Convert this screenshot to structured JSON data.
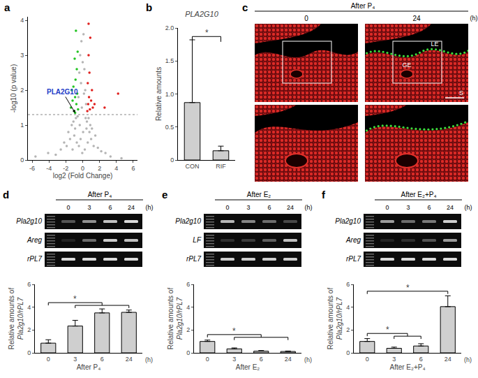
{
  "chart_data": [
    {
      "panel": "a",
      "type": "scatter",
      "xlabel": "log2 (Fold Change)",
      "ylabel": "-log10 (p value)",
      "xlim": [
        -6.5,
        6.5
      ],
      "xticks": [
        -6,
        -4,
        -2,
        0,
        2,
        4,
        6
      ],
      "ylim": [
        0,
        4.1
      ],
      "yticks": [
        0,
        1,
        2,
        3,
        4
      ],
      "grid": false,
      "threshold": 1.3,
      "series": [
        {
          "color": "#b4b4b4",
          "x": [
            -5.6,
            -4.1,
            -3.2,
            -2.6,
            -2.2,
            -1.9,
            -1.7,
            -1.5,
            -1.3,
            -1.2,
            -1.1,
            -1.0,
            -0.9,
            -0.8,
            -0.7,
            -0.6,
            -0.5,
            -0.45,
            -0.4,
            -0.35,
            -0.3,
            -0.25,
            -0.2,
            -0.15,
            -0.1,
            -0.05,
            0,
            0.05,
            0.1,
            0.15,
            0.2,
            0.25,
            0.3,
            0.35,
            0.4,
            0.45,
            0.5,
            0.6,
            0.7,
            0.8,
            0.9,
            1.0,
            1.1,
            1.3,
            1.5,
            1.8,
            2.2,
            2.7,
            3.3,
            4.6
          ],
          "y": [
            0.1,
            0.2,
            0.15,
            0.3,
            0.5,
            0.4,
            0.8,
            0.6,
            1.0,
            0.3,
            1.1,
            0.7,
            0.9,
            1.2,
            0.5,
            1.25,
            1.8,
            0.4,
            2.5,
            1.0,
            3.0,
            0.6,
            2.2,
            3.4,
            1.5,
            0.2,
            2.8,
            0.8,
            3.6,
            1.9,
            2.6,
            0.3,
            2.0,
            1.2,
            1.6,
            0.9,
            1.1,
            0.5,
            1.2,
            0.8,
            1.0,
            0.6,
            0.9,
            0.4,
            0.7,
            0.35,
            0.25,
            0.2,
            0.1,
            0.05
          ]
        },
        {
          "color": "#22c422",
          "x": [
            -1.4,
            -1.2,
            -1.1,
            -1.0,
            -0.95,
            -0.9,
            -0.85,
            -0.8,
            -0.75,
            -0.7,
            -0.65,
            -0.6,
            -0.55,
            -1.3,
            -0.9
          ],
          "y": [
            1.5,
            1.7,
            2.1,
            1.4,
            2.9,
            1.35,
            2.3,
            3.7,
            1.6,
            2.6,
            1.9,
            3.1,
            1.45,
            2.0,
            1.8
          ]
        },
        {
          "color": "#e0201e",
          "x": [
            0.55,
            0.6,
            0.65,
            0.7,
            0.75,
            0.8,
            0.85,
            0.9,
            1.0,
            1.1,
            1.2,
            1.4,
            0.7,
            2.6,
            4.2
          ],
          "y": [
            1.4,
            2.2,
            1.6,
            3.9,
            1.8,
            2.5,
            1.45,
            3.5,
            1.7,
            2.0,
            1.5,
            1.6,
            3.0,
            1.5,
            1.9
          ]
        }
      ],
      "annotations": [
        {
          "text": "PLA2G10",
          "x": -0.9,
          "y": 1.35,
          "color": "#1e3cc8"
        }
      ]
    },
    {
      "panel": "b",
      "type": "bar",
      "title": "PLA2G10",
      "categories": [
        "CON",
        "RIF"
      ],
      "values": [
        0.87,
        0.14
      ],
      "error": [
        0.95,
        0.07
      ],
      "ylabel": "Relative amounts",
      "ylim": [
        0,
        2
      ],
      "yticks": [
        0,
        0.5,
        {
          "value": 1,
          "label": "1.0"
        },
        1.5,
        {
          "value": 2,
          "label": "2.0"
        }
      ],
      "color": "#cfcfcf",
      "significance": [
        {
          "from": "CON",
          "to": [
            "RIF"
          ],
          "y": 1.87,
          "text": "*"
        }
      ]
    },
    {
      "panel": "d",
      "type": "bar",
      "categories": [
        "0",
        "3",
        "6",
        "24"
      ],
      "values": [
        0.85,
        2.35,
        3.5,
        3.55
      ],
      "error": [
        0.3,
        0.5,
        0.35,
        0.2
      ],
      "ylabel": [
        "Relative amounts of",
        "Pla2g10/rPL7"
      ],
      "xlabel": "(h)",
      "subtitle": "After P₄",
      "ylim": [
        0,
        6
      ],
      "yticks": [
        0,
        2,
        4,
        6
      ],
      "color": "#cfcfcf",
      "significance": [
        {
          "from": "0",
          "to": [
            "3",
            "6",
            "24"
          ],
          "y": 4.4,
          "text": "*"
        }
      ]
    },
    {
      "panel": "e",
      "type": "bar",
      "categories": [
        "0",
        "3",
        "6",
        "24"
      ],
      "values": [
        1.0,
        0.35,
        0.15,
        0.12
      ],
      "error": [
        0.12,
        0.08,
        0.05,
        0.04
      ],
      "ylabel": [
        "Relative amounts of",
        "Pla2g10/rPL7"
      ],
      "xlabel": "(h)",
      "subtitle": "After E₂",
      "ylim": [
        0,
        6
      ],
      "yticks": [
        0,
        2,
        4,
        6
      ],
      "color": "#cfcfcf",
      "significance": [
        {
          "from": "0",
          "to": [
            "3",
            "6",
            "24"
          ],
          "y": 1.6,
          "text": "*"
        }
      ]
    },
    {
      "panel": "f",
      "type": "bar",
      "categories": [
        "0",
        "3",
        "6",
        "24"
      ],
      "values": [
        1.0,
        0.4,
        0.6,
        4.05
      ],
      "error": [
        0.25,
        0.1,
        0.2,
        0.95
      ],
      "ylabel": [
        "Relative amounts of",
        "Pla2g10/rPL7"
      ],
      "xlabel": "(h)",
      "subtitle": "After E₂+P₄",
      "ylim": [
        0,
        6
      ],
      "yticks": [
        0,
        2,
        4,
        6
      ],
      "color": "#cfcfcf",
      "significance": [
        {
          "from": "0",
          "to": [
            "3",
            "6"
          ],
          "y": 1.7,
          "text": "*"
        },
        {
          "from": "0",
          "to": [
            "24"
          ],
          "y": 5.4,
          "text": "*"
        }
      ]
    }
  ],
  "micrograph": {
    "panel": "c",
    "header": "After P₄",
    "times": [
      "0",
      "24"
    ],
    "unit": "(h)",
    "labels": [
      "LE",
      "GE",
      "S"
    ]
  },
  "gels": [
    {
      "panel": "d",
      "header": "After P₄",
      "times": [
        "0",
        "3",
        "6",
        "24"
      ],
      "unit": "(h)",
      "rows": [
        {
          "label": "Pla2g10",
          "bands": [
            0.3,
            0.55,
            0.75,
            0.85
          ]
        },
        {
          "label": "Areg",
          "bands": [
            0.1,
            0.4,
            0.8,
            0.75
          ]
        },
        {
          "label": "rPL7",
          "bands": [
            0.85,
            0.85,
            0.85,
            0.85
          ]
        }
      ]
    },
    {
      "panel": "e",
      "header": "After E₂",
      "times": [
        "0",
        "3",
        "6",
        "24"
      ],
      "unit": "(h)",
      "rows": [
        {
          "label": "Pla2g10",
          "bands": [
            0.7,
            0.5,
            0.4,
            0.25
          ]
        },
        {
          "label": "LF",
          "bands": [
            0.15,
            0.2,
            0.35,
            0.75
          ]
        },
        {
          "label": "rPL7",
          "bands": [
            0.8,
            0.8,
            0.8,
            0.8
          ]
        }
      ]
    },
    {
      "panel": "f",
      "header": "After E₂+P₄",
      "times": [
        "0",
        "3",
        "6",
        "24"
      ],
      "unit": "(h)",
      "rows": [
        {
          "label": "Pla2g10",
          "bands": [
            0.6,
            0.4,
            0.45,
            0.8
          ]
        },
        {
          "label": "Areg",
          "bands": [
            0.1,
            0.15,
            0.3,
            0.6
          ]
        },
        {
          "label": "rPL7",
          "bands": [
            0.85,
            0.85,
            0.85,
            0.85
          ]
        }
      ]
    }
  ]
}
